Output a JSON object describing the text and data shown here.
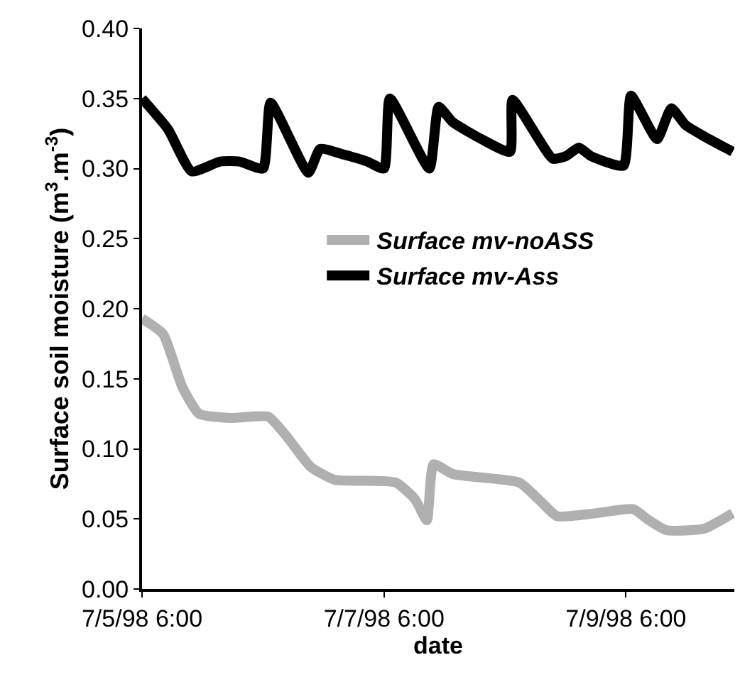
{
  "chart_data": {
    "type": "line",
    "xlabel": "date",
    "ylabel": "Surface soil moisture (m$^{3}$.m$^{-3}$)",
    "xlim": [
      "1998-07-05T06:00",
      "1998-07-10T03:30"
    ],
    "xticks": [
      {
        "value": "1998-07-05T06:00",
        "label": "7/5/98 6:00"
      },
      {
        "value": "1998-07-07T06:00",
        "label": "7/7/98 6:00"
      },
      {
        "value": "1998-07-09T06:00",
        "label": "7/9/98 6:00"
      }
    ],
    "ylim": [
      0,
      0.4
    ],
    "yticks": [
      {
        "value": 0,
        "label": "0.00"
      },
      {
        "value": 0.05,
        "label": "0.05"
      },
      {
        "value": 0.1,
        "label": "0.10"
      },
      {
        "value": 0.15,
        "label": "0.15"
      },
      {
        "value": 0.2,
        "label": "0.20"
      },
      {
        "value": 0.25,
        "label": "0.25"
      },
      {
        "value": 0.3,
        "label": "0.30"
      },
      {
        "value": 0.35,
        "label": "0.35"
      },
      {
        "value": 0.4,
        "label": "0.40"
      }
    ],
    "legend": "right",
    "marker": "none",
    "line_style": "solid",
    "series": [
      {
        "name": "Surface mv-noASS",
        "color": "#b0b0b0",
        "x": [
          "1998-07-05T06:00",
          "1998-07-05T10:10",
          "1998-07-05T14:00",
          "1998-07-05T17:20",
          "1998-07-05T23:30",
          "1998-07-06T07:00",
          "1998-07-06T10:40",
          "1998-07-06T15:30",
          "1998-07-06T20:10",
          "1998-07-07T08:20",
          "1998-07-07T12:10",
          "1998-07-07T14:30",
          "1998-07-07T15:50",
          "1998-07-07T19:40",
          "1998-07-08T08:50",
          "1998-07-08T12:40",
          "1998-07-08T16:20",
          "1998-07-08T23:50",
          "1998-07-09T07:30",
          "1998-07-09T10:10",
          "1998-07-09T14:00",
          "1998-07-09T21:30",
          "1998-07-10T03:10"
        ],
        "values": [
          0.193,
          0.182,
          0.144,
          0.125,
          0.122,
          0.123,
          0.109,
          0.087,
          0.078,
          0.076,
          0.064,
          0.049,
          0.089,
          0.082,
          0.076,
          0.064,
          0.052,
          0.054,
          0.057,
          0.05,
          0.042,
          0.043,
          0.054
        ]
      },
      {
        "name": "Surface mv-Ass",
        "color": "#000000",
        "x": [
          "1998-07-05T06:00",
          "1998-07-05T11:10",
          "1998-07-05T15:50",
          "1998-07-05T21:30",
          "1998-07-06T01:20",
          "1998-07-06T06:00",
          "1998-07-06T07:30",
          "1998-07-06T15:00",
          "1998-07-06T17:20",
          "1998-07-06T22:00",
          "1998-07-07T02:40",
          "1998-07-07T06:00",
          "1998-07-07T07:10",
          "1998-07-07T15:00",
          "1998-07-07T16:50",
          "1998-07-07T19:40",
          "1998-07-08T01:20",
          "1998-07-08T07:00",
          "1998-07-08T07:30",
          "1998-07-08T15:30",
          "1998-07-08T18:10",
          "1998-07-08T20:40",
          "1998-07-08T23:00",
          "1998-07-09T05:30",
          "1998-07-09T07:00",
          "1998-07-09T12:10",
          "1998-07-09T15:00",
          "1998-07-09T17:50",
          "1998-07-09T21:30",
          "1998-07-10T03:10"
        ],
        "values": [
          0.35,
          0.328,
          0.298,
          0.305,
          0.305,
          0.3,
          0.347,
          0.297,
          0.314,
          0.31,
          0.305,
          0.3,
          0.35,
          0.3,
          0.344,
          0.333,
          0.321,
          0.312,
          0.349,
          0.307,
          0.309,
          0.315,
          0.309,
          0.302,
          0.352,
          0.321,
          0.343,
          0.331,
          0.323,
          0.312
        ]
      }
    ]
  }
}
